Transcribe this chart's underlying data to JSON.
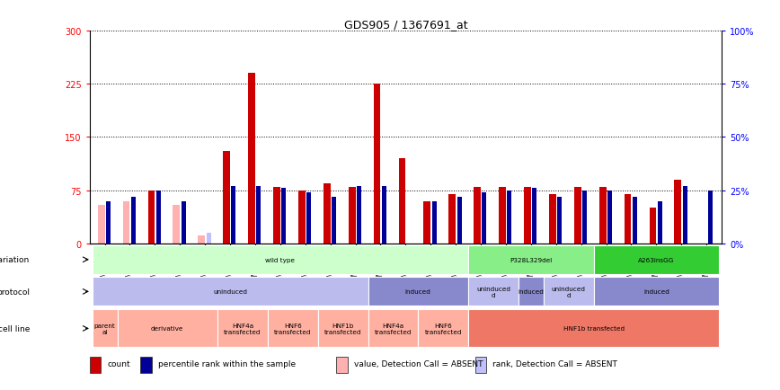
{
  "title": "GDS905 / 1367691_at",
  "samples": [
    "GSM27203",
    "GSM27204",
    "GSM27205",
    "GSM27206",
    "GSM27207",
    "GSM27150",
    "GSM27152",
    "GSM27156",
    "GSM27159",
    "GSM27063",
    "GSM27148",
    "GSM27151",
    "GSM27153",
    "GSM27157",
    "GSM27160",
    "GSM27147",
    "GSM27149",
    "GSM27161",
    "GSM27165",
    "GSM27163",
    "GSM27167",
    "GSM27169",
    "GSM27171",
    "GSM27170",
    "GSM27172"
  ],
  "count": [
    0,
    0,
    75,
    0,
    0,
    130,
    240,
    80,
    75,
    85,
    80,
    225,
    120,
    60,
    70,
    80,
    80,
    80,
    70,
    80,
    80,
    70,
    50,
    90,
    0
  ],
  "rank_pct": [
    20,
    22,
    25,
    20,
    0,
    27,
    27,
    26,
    24,
    22,
    27,
    27,
    0,
    20,
    22,
    24,
    25,
    26,
    22,
    25,
    25,
    22,
    20,
    27,
    25
  ],
  "count_absent": [
    55,
    60,
    0,
    55,
    12,
    0,
    0,
    0,
    0,
    0,
    0,
    0,
    110,
    0,
    0,
    0,
    0,
    0,
    0,
    0,
    0,
    0,
    0,
    0,
    0
  ],
  "rank_absent_pct": [
    20,
    22,
    0,
    20,
    5,
    0,
    0,
    0,
    0,
    0,
    0,
    0,
    0,
    0,
    0,
    0,
    0,
    0,
    0,
    0,
    0,
    0,
    0,
    0,
    0
  ],
  "ylim_left": [
    0,
    300
  ],
  "ylim_right": [
    0,
    100
  ],
  "yticks_left": [
    0,
    75,
    150,
    225,
    300
  ],
  "yticks_right": [
    0,
    25,
    50,
    75,
    100
  ],
  "color_count": "#cc0000",
  "color_rank": "#000099",
  "color_count_absent": "#ffb0b0",
  "color_rank_absent": "#c0c0ff",
  "color_bg": "#ffffff",
  "genotype_row": [
    {
      "label": "wild type",
      "start": 0,
      "end": 15,
      "color": "#ccffcc"
    },
    {
      "label": "P328L329del",
      "start": 15,
      "end": 20,
      "color": "#88ee88"
    },
    {
      "label": "A263insGG",
      "start": 20,
      "end": 25,
      "color": "#33cc33"
    }
  ],
  "protocol_row": [
    {
      "label": "uninduced",
      "start": 0,
      "end": 11,
      "color": "#bbbbee"
    },
    {
      "label": "induced",
      "start": 11,
      "end": 15,
      "color": "#8888cc"
    },
    {
      "label": "uninduced\nd",
      "start": 15,
      "end": 17,
      "color": "#bbbbee"
    },
    {
      "label": "induced",
      "start": 17,
      "end": 18,
      "color": "#8888cc"
    },
    {
      "label": "uninduced\nd",
      "start": 18,
      "end": 20,
      "color": "#bbbbee"
    },
    {
      "label": "induced",
      "start": 20,
      "end": 25,
      "color": "#8888cc"
    }
  ],
  "cellline_row": [
    {
      "label": "parent\nal",
      "start": 0,
      "end": 1,
      "color": "#ffb0a0"
    },
    {
      "label": "derivative",
      "start": 1,
      "end": 5,
      "color": "#ffb0a0"
    },
    {
      "label": "HNF4a\ntransfected",
      "start": 5,
      "end": 7,
      "color": "#ffb0a0"
    },
    {
      "label": "HNF6\ntransfected",
      "start": 7,
      "end": 9,
      "color": "#ffb0a0"
    },
    {
      "label": "HNF1b\ntransfected",
      "start": 9,
      "end": 11,
      "color": "#ffb0a0"
    },
    {
      "label": "HNF4a\ntransfected",
      "start": 11,
      "end": 13,
      "color": "#ffb0a0"
    },
    {
      "label": "HNF6\ntransfected",
      "start": 13,
      "end": 15,
      "color": "#ffb0a0"
    },
    {
      "label": "HNF1b transfected",
      "start": 15,
      "end": 25,
      "color": "#ee7766"
    }
  ],
  "legend": [
    {
      "label": "count",
      "color": "#cc0000"
    },
    {
      "label": "percentile rank within the sample",
      "color": "#000099"
    },
    {
      "label": "value, Detection Call = ABSENT",
      "color": "#ffb0b0"
    },
    {
      "label": "rank, Detection Call = ABSENT",
      "color": "#c0c0ff"
    }
  ]
}
